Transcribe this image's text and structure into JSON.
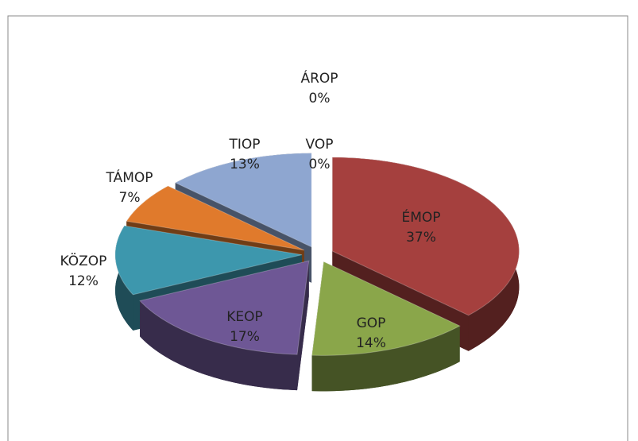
{
  "chart_data": {
    "type": "pie3d",
    "categories": [
      "ÉMOP",
      "GOP",
      "KEOP",
      "KÖZOP",
      "TÁMOP",
      "TIOP",
      "VOP",
      "ÁROP"
    ],
    "values": [
      37,
      14,
      17,
      12,
      7,
      13,
      0,
      0
    ],
    "value_labels": [
      "37%",
      "14%",
      "17%",
      "12%",
      "7%",
      "13%",
      "0%",
      "0%"
    ],
    "colors": [
      "#a5403e",
      "#8aa64a",
      "#6e5795",
      "#3d97ad",
      "#e07a2c",
      "#8ea6d0",
      "#4f6fa8",
      "#2f4d80"
    ]
  }
}
